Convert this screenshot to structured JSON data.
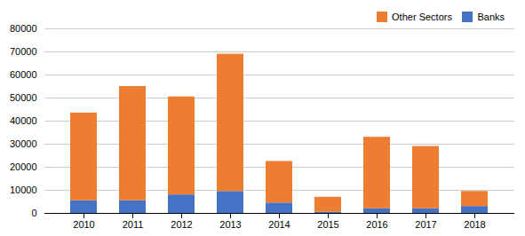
{
  "chart_data": {
    "type": "bar",
    "stacked": true,
    "categories": [
      "2010",
      "2011",
      "2012",
      "2013",
      "2014",
      "2015",
      "2016",
      "2017",
      "2018"
    ],
    "series": [
      {
        "name": "Banks",
        "color": "#4472C4",
        "values": [
          5500,
          5500,
          8000,
          9500,
          4500,
          500,
          2000,
          2000,
          3000
        ]
      },
      {
        "name": "Other Sectors",
        "color": "#ED7D31",
        "values": [
          38000,
          49500,
          42500,
          59500,
          18000,
          6500,
          31000,
          27000,
          6500
        ]
      }
    ],
    "ylim": [
      0,
      80000
    ],
    "yticks": [
      0,
      10000,
      20000,
      30000,
      40000,
      50000,
      60000,
      70000,
      80000
    ],
    "grid": true,
    "legend": "upper right"
  }
}
